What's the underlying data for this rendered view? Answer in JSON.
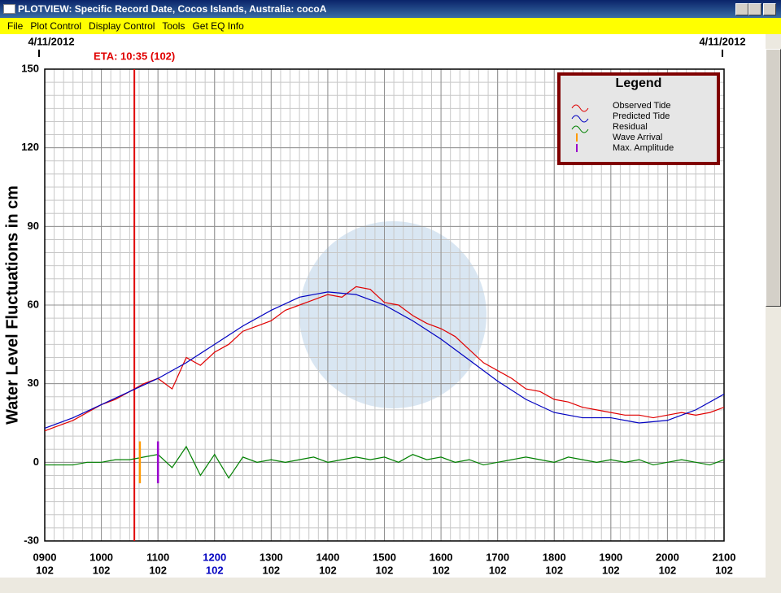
{
  "window": {
    "title": "PLOTVIEW: Specific Record Date, Cocos Islands, Australia: cocoA",
    "menu": [
      "File",
      "Plot Control",
      "Display Control",
      "Tools",
      "Get EQ Info"
    ]
  },
  "chart_data": {
    "type": "line",
    "date_left": "4/11/2012",
    "date_right": "4/11/2012",
    "y_label": "Water Level Fluctuations in cm",
    "legend_title": "Legend",
    "ylim": [
      -30,
      150
    ],
    "yticks": [
      -30,
      0,
      30,
      60,
      90,
      120,
      150
    ],
    "minor_step_y": 5,
    "xlim": [
      9,
      21
    ],
    "xticks": [
      {
        "value": 9,
        "label": "0900"
      },
      {
        "value": 10,
        "label": "1000"
      },
      {
        "value": 11,
        "label": "1100"
      },
      {
        "value": 12,
        "label": "1200"
      },
      {
        "value": 13,
        "label": "1300"
      },
      {
        "value": 14,
        "label": "1400"
      },
      {
        "value": 15,
        "label": "1500"
      },
      {
        "value": 16,
        "label": "1600"
      },
      {
        "value": 17,
        "label": "1700"
      },
      {
        "value": 18,
        "label": "1800"
      },
      {
        "value": 19,
        "label": "1900"
      },
      {
        "value": 20,
        "label": "2000"
      },
      {
        "value": 21,
        "label": "2100"
      }
    ],
    "xtick_days": [
      "102",
      "102",
      "102",
      "102",
      "102",
      "102",
      "102",
      "102",
      "102",
      "102",
      "102",
      "102",
      "102"
    ],
    "highlight_xtick": 3,
    "highlight_color": "#0000c0",
    "minor_per_hour": 6,
    "grid": true,
    "eta": {
      "label": "ETA: 10:35 (102)",
      "x": 10.583,
      "color": "#e00000"
    },
    "series": [
      {
        "name": "Observed Tide",
        "color": "#e00000",
        "x": [
          9,
          9.25,
          9.5,
          9.75,
          10,
          10.25,
          10.5,
          10.75,
          11,
          11.25,
          11.5,
          11.75,
          12,
          12.25,
          12.5,
          12.75,
          13,
          13.25,
          13.5,
          13.75,
          14,
          14.25,
          14.5,
          14.75,
          15,
          15.25,
          15.5,
          15.75,
          16,
          16.25,
          16.5,
          16.75,
          17,
          17.25,
          17.5,
          17.75,
          18,
          18.25,
          18.5,
          18.75,
          19,
          19.25,
          19.5,
          19.75,
          20,
          20.25,
          20.5,
          20.75,
          21
        ],
        "values": [
          12,
          14,
          16,
          19,
          22,
          24,
          27,
          30,
          32,
          28,
          40,
          37,
          42,
          45,
          50,
          52,
          54,
          58,
          60,
          62,
          64,
          63,
          67,
          66,
          61,
          60,
          56,
          53,
          51,
          48,
          43,
          38,
          35,
          32,
          28,
          27,
          24,
          23,
          21,
          20,
          19,
          18,
          18,
          17,
          18,
          19,
          18,
          19,
          21
        ]
      },
      {
        "name": "Predicted Tide",
        "color": "#0000c0",
        "x": [
          9,
          9.5,
          10,
          10.5,
          11,
          11.5,
          12,
          12.5,
          13,
          13.5,
          14,
          14.5,
          15,
          15.5,
          16,
          16.5,
          17,
          17.5,
          18,
          18.5,
          19,
          19.5,
          20,
          20.5,
          21
        ],
        "values": [
          13,
          17,
          22,
          27,
          32,
          38,
          45,
          52,
          58,
          63,
          65,
          64,
          60,
          54,
          47,
          39,
          31,
          24,
          19,
          17,
          17,
          15,
          16,
          20,
          26
        ]
      },
      {
        "name": "Residual",
        "color": "#008000",
        "x": [
          9,
          9.25,
          9.5,
          9.75,
          10,
          10.25,
          10.5,
          10.75,
          11,
          11.25,
          11.5,
          11.75,
          12,
          12.25,
          12.5,
          12.75,
          13,
          13.25,
          13.5,
          13.75,
          14,
          14.25,
          14.5,
          14.75,
          15,
          15.25,
          15.5,
          15.75,
          16,
          16.25,
          16.5,
          16.75,
          17,
          17.25,
          17.5,
          17.75,
          18,
          18.25,
          18.5,
          18.75,
          19,
          19.25,
          19.5,
          19.75,
          20,
          20.25,
          20.5,
          20.75,
          21
        ],
        "values": [
          -1,
          -1,
          -1,
          0,
          0,
          1,
          1,
          2,
          3,
          -2,
          6,
          -5,
          3,
          -6,
          2,
          0,
          1,
          0,
          1,
          2,
          0,
          1,
          2,
          1,
          2,
          0,
          3,
          1,
          2,
          0,
          1,
          -1,
          0,
          1,
          2,
          1,
          0,
          2,
          1,
          0,
          1,
          0,
          1,
          -1,
          0,
          1,
          0,
          -1,
          1
        ]
      }
    ],
    "markers": [
      {
        "name": "Wave Arrival",
        "color": "#ff9900",
        "x": 10.68,
        "ymin": -8,
        "ymax": 8
      },
      {
        "name": "Max. Amplitude",
        "color": "#9900cc",
        "x": 11.0,
        "ymin": -8,
        "ymax": 8
      }
    ]
  }
}
